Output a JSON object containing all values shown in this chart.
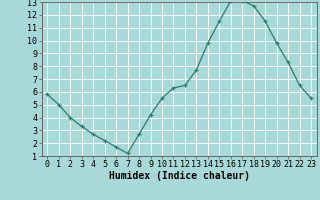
{
  "x": [
    0,
    1,
    2,
    3,
    4,
    5,
    6,
    7,
    8,
    9,
    10,
    11,
    12,
    13,
    14,
    15,
    16,
    17,
    18,
    19,
    20,
    21,
    22,
    23
  ],
  "y": [
    5.8,
    5.0,
    4.0,
    3.3,
    2.7,
    2.2,
    1.7,
    1.2,
    2.7,
    4.2,
    5.5,
    6.3,
    6.5,
    7.7,
    9.8,
    11.5,
    13.1,
    13.1,
    12.7,
    11.5,
    9.8,
    8.3,
    6.5,
    5.5
  ],
  "line_color": "#2d7d6e",
  "bg_color": "#a8d8d8",
  "grid_color": "#ffffff",
  "xlabel": "Humidex (Indice chaleur)",
  "xlim": [
    -0.5,
    23.5
  ],
  "ylim": [
    1,
    13
  ],
  "xticks": [
    0,
    1,
    2,
    3,
    4,
    5,
    6,
    7,
    8,
    9,
    10,
    11,
    12,
    13,
    14,
    15,
    16,
    17,
    18,
    19,
    20,
    21,
    22,
    23
  ],
  "yticks": [
    1,
    2,
    3,
    4,
    5,
    6,
    7,
    8,
    9,
    10,
    11,
    12,
    13
  ],
  "tick_fontsize": 6.0,
  "xlabel_fontsize": 7.0
}
